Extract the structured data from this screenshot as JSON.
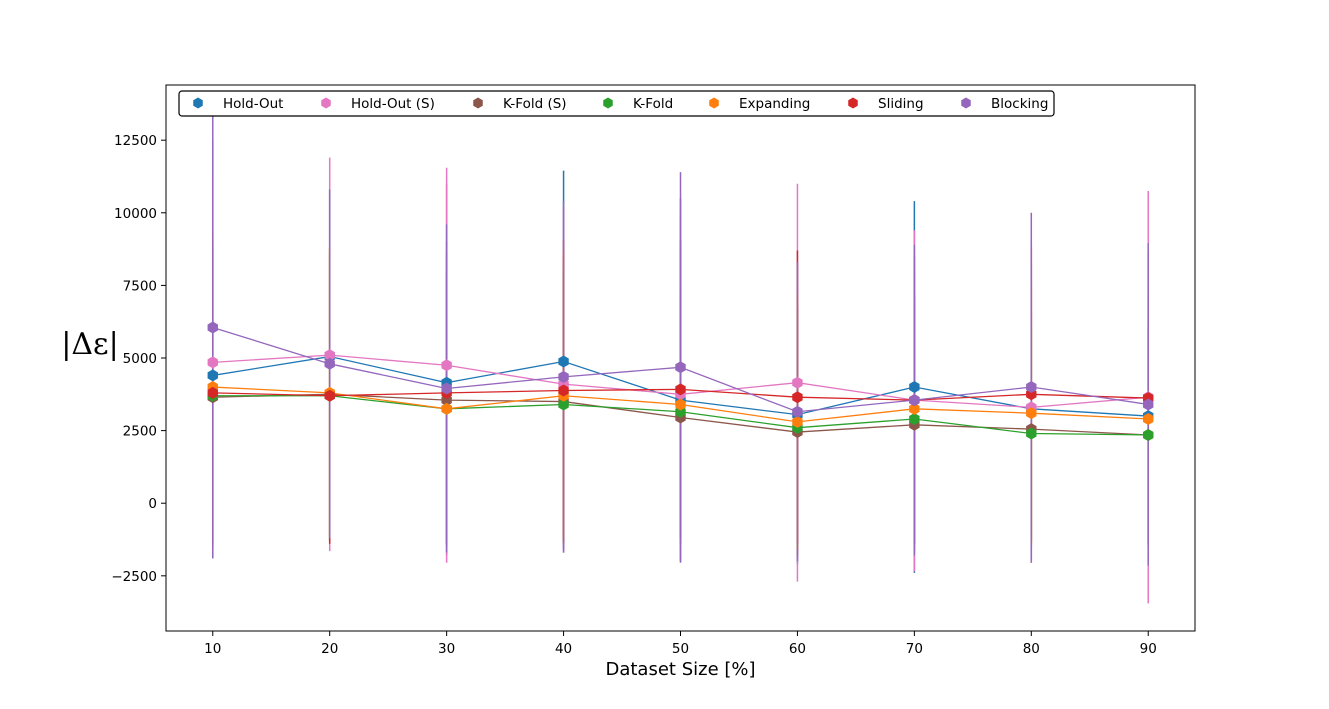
{
  "chart_data": {
    "type": "line",
    "xlabel": "Dataset Size [%]",
    "ylabel": "|Δε|",
    "x": [
      10,
      20,
      30,
      40,
      50,
      60,
      70,
      80,
      90
    ],
    "xlim": [
      6,
      94
    ],
    "ylim": [
      -4400,
      14400
    ],
    "x_ticks": [
      "10",
      "20",
      "30",
      "40",
      "50",
      "60",
      "70",
      "80",
      "90"
    ],
    "y_ticks": [
      -2500,
      0,
      2500,
      5000,
      7500,
      10000,
      12500
    ],
    "y_tick_labels": [
      "−2500",
      "0",
      "2500",
      "5000",
      "7500",
      "10000",
      "12500"
    ],
    "grid": false,
    "legend_position": "top",
    "marker": "hexagon",
    "series": [
      {
        "name": "Hold-Out",
        "color": "#1f77b4",
        "values": [
          4400,
          5050,
          4150,
          4880,
          3550,
          3050,
          4000,
          3250,
          3000
        ],
        "err_low": [
          -1900,
          -1300,
          -1800,
          -1600,
          -2000,
          -2100,
          -2400,
          -1900,
          -2000
        ],
        "err_high": [
          12500,
          10800,
          11000,
          11450,
          10500,
          8300,
          10400,
          8200,
          9000
        ]
      },
      {
        "name": "Hold-Out (S)",
        "color": "#e377c2",
        "values": [
          4850,
          5100,
          4750,
          4100,
          3750,
          4150,
          3550,
          3300,
          3650
        ],
        "err_low": [
          -1600,
          -1650,
          -2050,
          -1700,
          -1900,
          -2700,
          -2350,
          -2050,
          -3450
        ],
        "err_high": [
          11300,
          11900,
          11550,
          10200,
          10000,
          11000,
          9400,
          9000,
          10750
        ]
      },
      {
        "name": "K-Fold (S)",
        "color": "#8c564b",
        "values": [
          3650,
          3750,
          3550,
          3500,
          2950,
          2450,
          2700,
          2550,
          2350
        ],
        "err_low": [
          -1500,
          -1300,
          -1500,
          -1400,
          -1400,
          -1800,
          -1700,
          -1500,
          -1500
        ],
        "err_high": [
          8800,
          8800,
          8600,
          8500,
          7300,
          6700,
          7100,
          6600,
          6300
        ]
      },
      {
        "name": "K-Fold",
        "color": "#2ca02c",
        "values": [
          3700,
          3700,
          3250,
          3400,
          3150,
          2600,
          2900,
          2400,
          2350
        ],
        "err_low": [
          -1400,
          -1200,
          -1400,
          -1300,
          -1200,
          -1500,
          -1400,
          -1300,
          -1400
        ],
        "err_high": [
          8800,
          8600,
          7900,
          8100,
          7500,
          6700,
          7200,
          6100,
          6100
        ]
      },
      {
        "name": "Expanding",
        "color": "#ff7f0e",
        "values": [
          4000,
          3800,
          3250,
          3700,
          3400,
          2800,
          3250,
          3100,
          2900
        ],
        "err_low": [
          -1300,
          -1200,
          -1400,
          -1200,
          -1300,
          -1600,
          -1500,
          -1400,
          -1500
        ],
        "err_high": [
          9300,
          8800,
          7900,
          8600,
          8100,
          7200,
          8000,
          7600,
          7300
        ]
      },
      {
        "name": "Sliding",
        "color": "#d62728",
        "values": [
          3800,
          3700,
          3800,
          3880,
          3920,
          3650,
          3550,
          3750,
          3620
        ],
        "err_low": [
          -1500,
          -1400,
          -1400,
          -1300,
          -1200,
          -1400,
          -1400,
          -1300,
          -1400
        ],
        "err_high": [
          9100,
          8800,
          9000,
          9060,
          9040,
          8700,
          8500,
          8800,
          8640
        ]
      },
      {
        "name": "Blocking",
        "color": "#9467bd",
        "values": [
          6050,
          4800,
          3950,
          4350,
          4680,
          3150,
          3550,
          4000,
          3400
        ],
        "err_low": [
          -1900,
          -1200,
          -1700,
          -1700,
          -2050,
          -2000,
          -1800,
          -2050,
          -2150
        ],
        "err_high": [
          14000,
          10800,
          9600,
          10400,
          11400,
          8300,
          8900,
          10000,
          8950
        ]
      }
    ]
  }
}
